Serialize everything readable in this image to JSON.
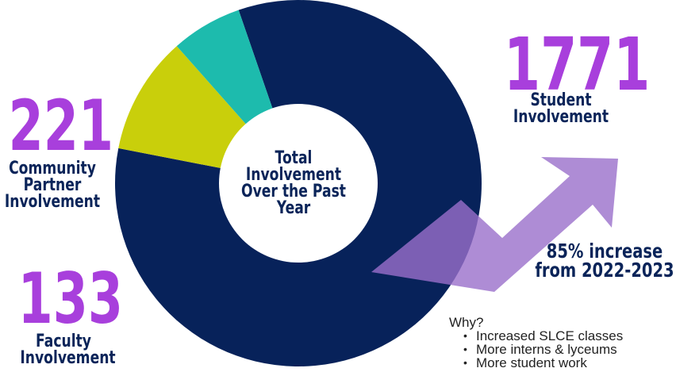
{
  "chart_data": {
    "type": "pie",
    "title": "Total Involvement Over the Past Year",
    "categories": [
      "Student Involvement",
      "Community Partner Involvement",
      "Faculty Involvement"
    ],
    "values": [
      1771,
      221,
      133
    ],
    "colors": [
      "#07225a",
      "#c9cf0b",
      "#1dbbad"
    ],
    "donut": true,
    "legend": "none"
  },
  "center_title": "Total Involvement Over the Past Year",
  "student": {
    "value": "1771",
    "label": "Student Involvement"
  },
  "community": {
    "value": "221",
    "label": "Community Partner Involvement"
  },
  "faculty": {
    "value": "133",
    "label": "Faculty Involvement"
  },
  "increase": {
    "line1": "85% increase",
    "line2": "from 2022-2023"
  },
  "why": {
    "heading": "Why?",
    "items": [
      "Increased SLCE classes",
      "More interns & lyceums",
      "More student work"
    ]
  },
  "colors": {
    "accent_purple": "#a83fdc",
    "navy": "#0a2459",
    "arrow": "#9a6fcb"
  }
}
